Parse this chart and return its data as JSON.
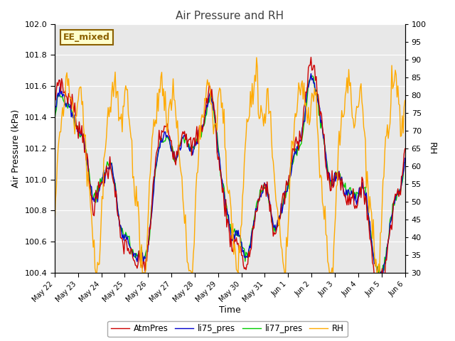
{
  "title": "Air Pressure and RH",
  "xlabel": "Time",
  "ylabel_left": "Air Pressure (kPa)",
  "ylabel_right": "RH",
  "ylim_left": [
    100.4,
    102.0
  ],
  "ylim_right": [
    30,
    100
  ],
  "yticks_left": [
    100.4,
    100.6,
    100.8,
    101.0,
    101.2,
    101.4,
    101.6,
    101.8,
    102.0
  ],
  "yticks_right": [
    30,
    35,
    40,
    45,
    50,
    55,
    60,
    65,
    70,
    75,
    80,
    85,
    90,
    95,
    100
  ],
  "xtick_labels": [
    "May 22",
    "May 23",
    "May 24",
    "May 25",
    "May 26",
    "May 27",
    "May 28",
    "May 29",
    "May 30",
    "May 31",
    "Jun 1",
    "Jun 2",
    "Jun 3",
    "Jun 4",
    "Jun 5",
    "Jun 6"
  ],
  "colors": {
    "AtmPres": "#cc0000",
    "li75_pres": "#0000cc",
    "li77_pres": "#00cc00",
    "RH": "#ffaa00"
  },
  "legend_labels": [
    "AtmPres",
    "li75_pres",
    "li77_pres",
    "RH"
  ],
  "annotation_text": "EE_mixed",
  "annotation_color": "#8B6000",
  "annotation_bg": "#ffffcc",
  "plot_bg": "#e8e8e8",
  "fig_bg": "#ffffff",
  "grid_color": "#ffffff",
  "title_color": "#404040",
  "n_points": 400
}
